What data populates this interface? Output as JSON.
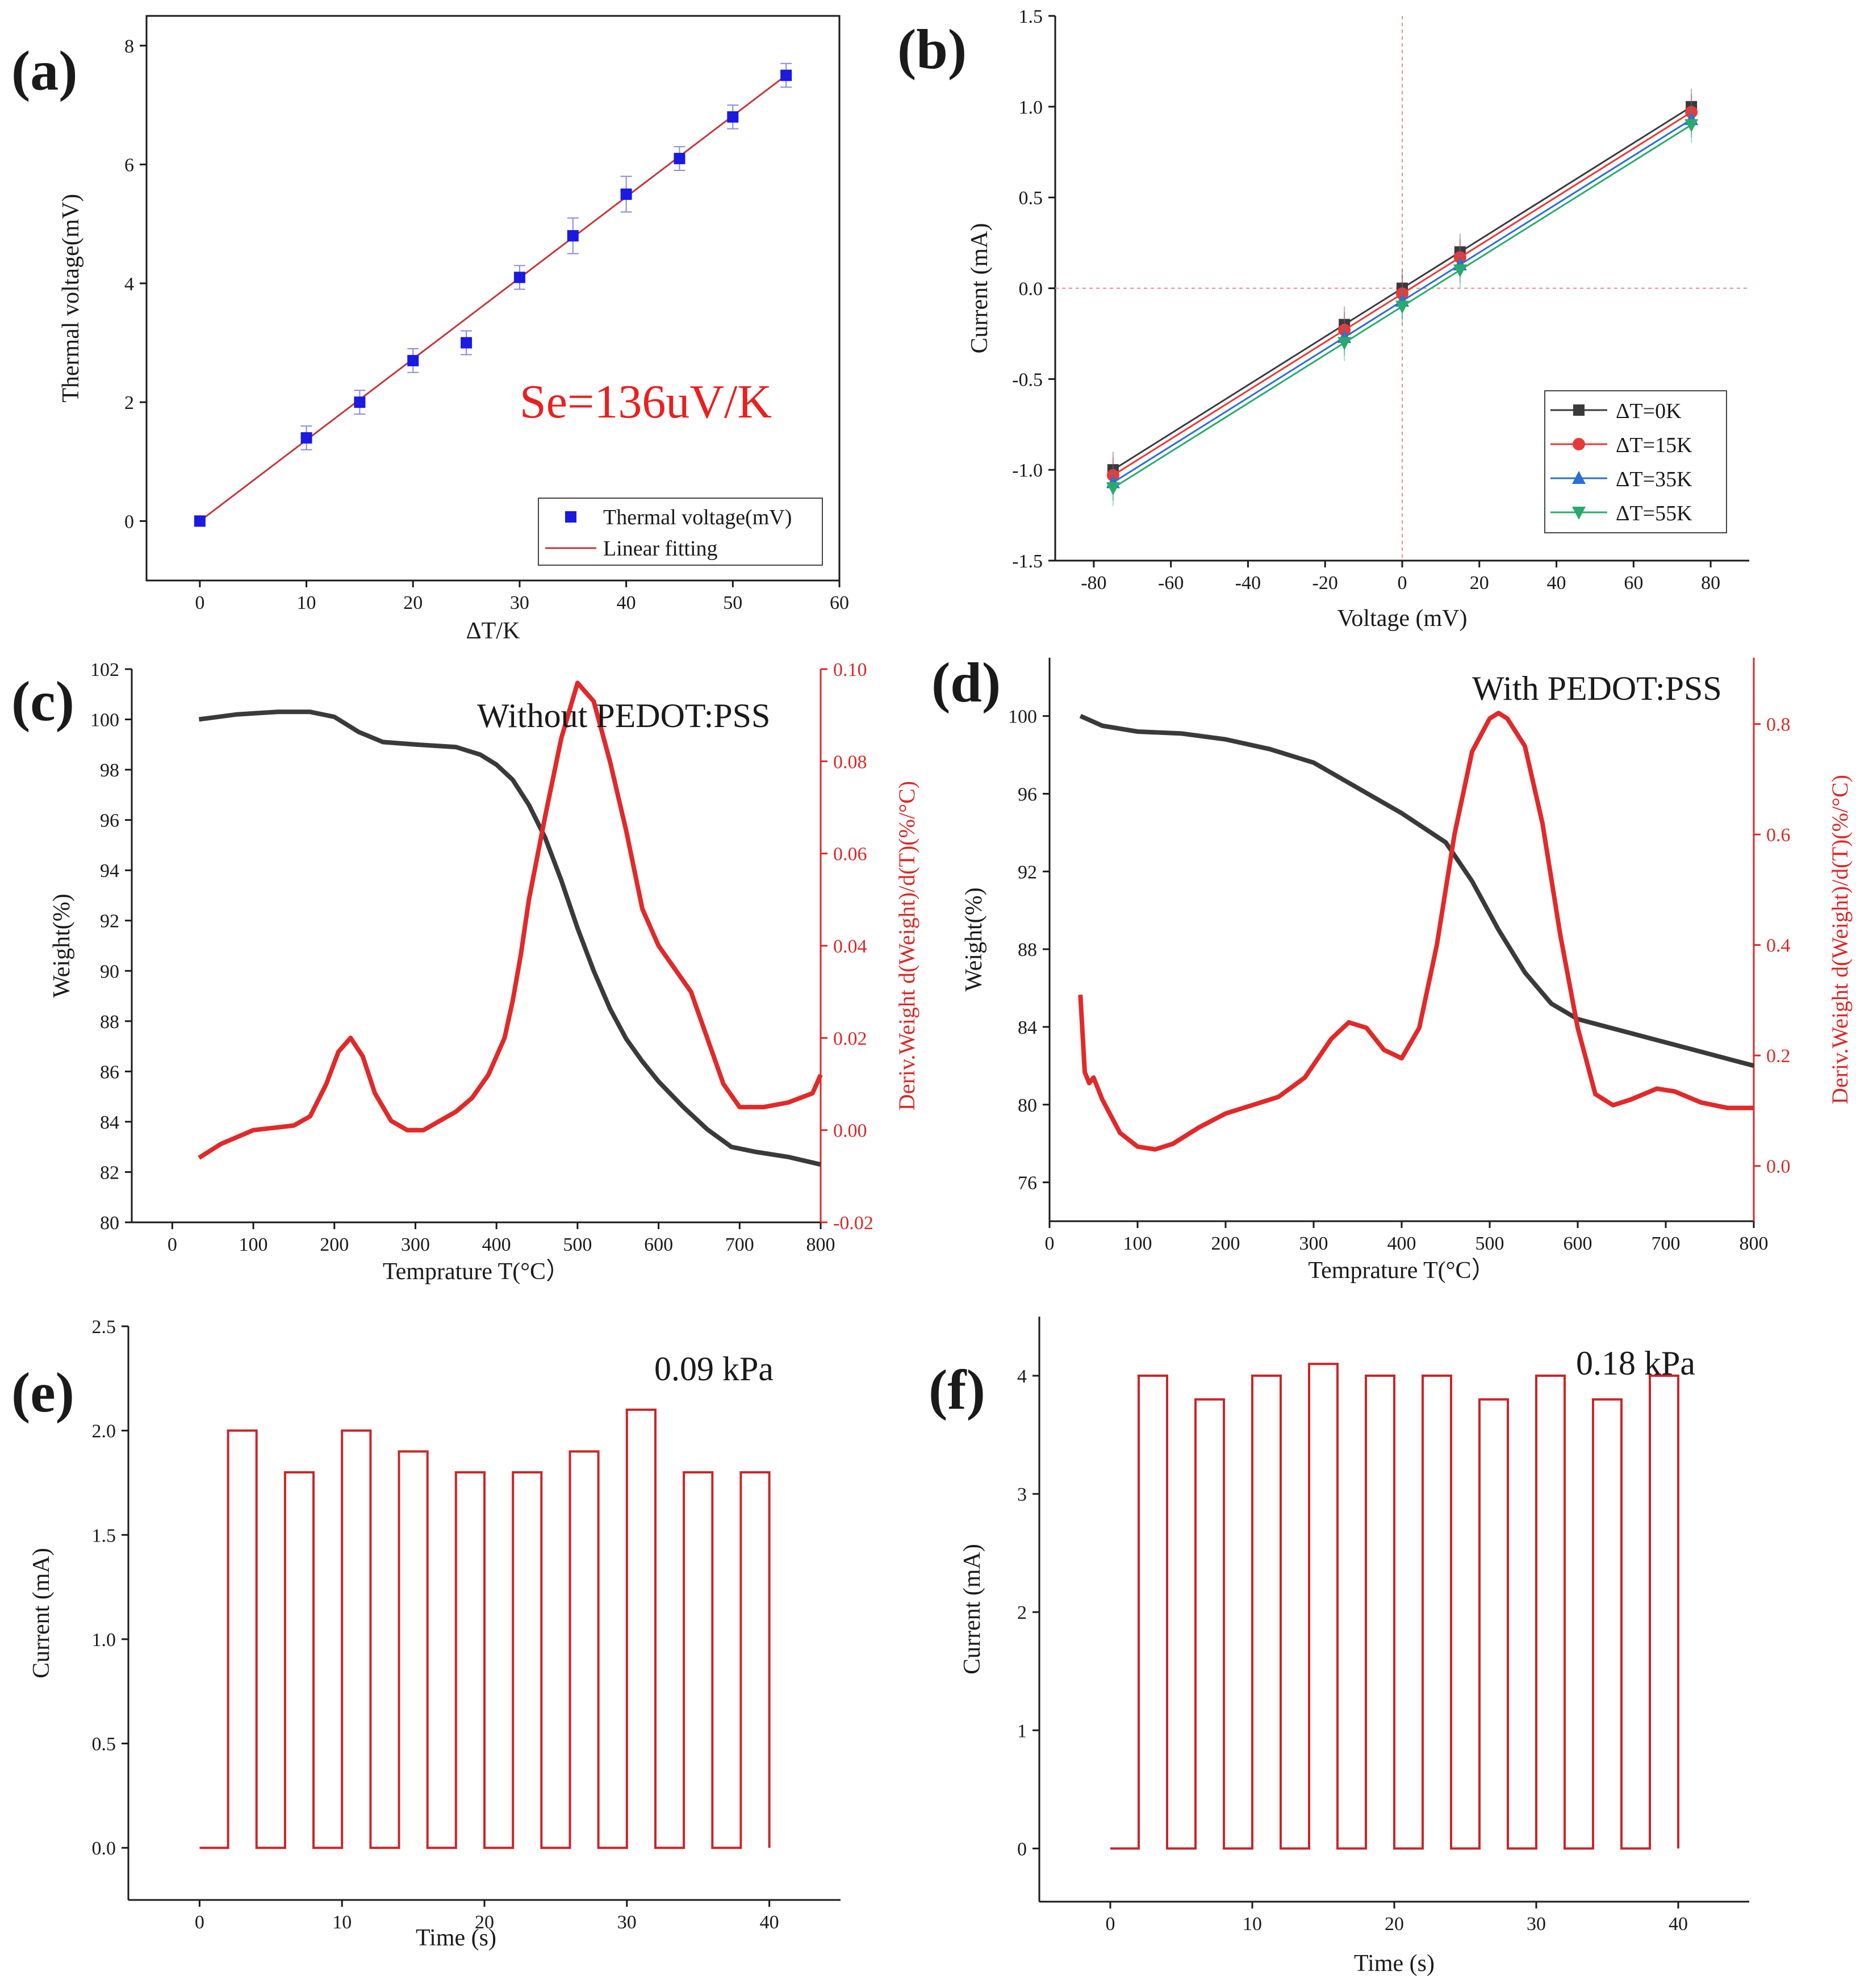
{
  "colors": {
    "text": "#1a1a1a",
    "red": "#d82a2a",
    "annotation_red": "#e8201f",
    "marker_blue": "#1a1ae0",
    "fit_line": "#c0393b",
    "tga_black": "#3a3a3a",
    "tga_red": "#e02a2a",
    "pulse_red": "#c8262a",
    "guide_pink": "#e58c8c"
  },
  "chart_data": [
    {
      "panel": "a",
      "panel_label": "(a)",
      "type": "scatter",
      "xlabel": "ΔT/K",
      "ylabel": "Thermal voltage(mV)",
      "xlim": [
        -5,
        60
      ],
      "ylim": [
        -1,
        8.5
      ],
      "xticks": [
        0,
        10,
        20,
        30,
        40,
        50,
        60
      ],
      "yticks": [
        0,
        2,
        4,
        6,
        8
      ],
      "annotation": "Se=136uV/K",
      "series": [
        {
          "name": "Thermal voltage(mV)",
          "x": [
            0,
            10,
            15,
            20,
            25,
            30,
            35,
            40,
            45,
            50,
            55
          ],
          "y": [
            0,
            1.4,
            2.0,
            2.7,
            3.0,
            4.1,
            4.8,
            5.5,
            6.1,
            6.8,
            7.5
          ],
          "err": [
            0,
            0.2,
            0.2,
            0.2,
            0.2,
            0.2,
            0.3,
            0.3,
            0.2,
            0.2,
            0.2
          ]
        }
      ],
      "fit": {
        "name": "Linear fitting",
        "x": [
          0,
          55
        ],
        "y": [
          0,
          7.5
        ]
      },
      "legend": [
        "Thermal voltage(mV)",
        "Linear fitting"
      ],
      "legend_position": "bottom-right"
    },
    {
      "panel": "b",
      "panel_label": "(b)",
      "type": "line",
      "xlabel": "Voltage (mV)",
      "ylabel": "Current (mA)",
      "xlim": [
        -90,
        90
      ],
      "ylim": [
        -1.5,
        1.5
      ],
      "xticks": [
        -80,
        -60,
        -40,
        -20,
        0,
        20,
        40,
        60,
        80
      ],
      "yticks": [
        -1.5,
        -1.0,
        -0.5,
        0.0,
        0.5,
        1.0,
        1.5
      ],
      "ytick_labels": [
        "-1.5",
        "-1.0",
        "-0.5",
        "0.0",
        "0.5",
        "1.0",
        "1.5"
      ],
      "x": [
        -75,
        -15,
        0,
        15,
        75
      ],
      "series": [
        {
          "name": "ΔT=0K",
          "color": "#3a3a3a",
          "marker": "square",
          "values": [
            -1.0,
            -0.2,
            0.0,
            0.2,
            1.0
          ]
        },
        {
          "name": "ΔT=15K",
          "color": "#e83a3a",
          "marker": "circle",
          "values": [
            -1.03,
            -0.23,
            -0.03,
            0.17,
            0.97
          ]
        },
        {
          "name": "ΔT=35K",
          "color": "#2a6fd8",
          "marker": "triangle-up",
          "values": [
            -1.07,
            -0.27,
            -0.07,
            0.13,
            0.93
          ]
        },
        {
          "name": "ΔT=55K",
          "color": "#2aaa6a",
          "marker": "triangle-down",
          "values": [
            -1.1,
            -0.3,
            -0.1,
            0.1,
            0.9
          ]
        }
      ],
      "legend_position": "bottom-right"
    },
    {
      "panel": "c",
      "panel_label": "(c)",
      "type": "line",
      "title": "Without PEDOT:PSS",
      "xlabel": "Temprature T(°C）",
      "ylabel": "Weight(%)",
      "ylabel_right": "Deriv.Weight d(Weight)/d(T)(%/°C)",
      "xlim": [
        -50,
        800
      ],
      "ylim": [
        80,
        102
      ],
      "ylim_right": [
        -0.02,
        0.1
      ],
      "xticks": [
        0,
        100,
        200,
        300,
        400,
        500,
        600,
        700,
        800
      ],
      "yticks": [
        80,
        82,
        84,
        86,
        88,
        90,
        92,
        94,
        96,
        98,
        100,
        102
      ],
      "yticks_right": [
        -0.02,
        0.0,
        0.02,
        0.04,
        0.06,
        0.08,
        0.1
      ],
      "ytick_labels_right": [
        "-0.02",
        "0.00",
        "0.02",
        "0.04",
        "0.06",
        "0.08",
        "0.10"
      ],
      "weight": {
        "x": [
          33,
          80,
          130,
          170,
          200,
          230,
          260,
          300,
          350,
          380,
          400,
          420,
          440,
          460,
          480,
          500,
          520,
          540,
          560,
          580,
          600,
          630,
          660,
          690,
          720,
          760,
          800
        ],
        "y": [
          100.0,
          100.2,
          100.3,
          100.3,
          100.1,
          99.5,
          99.1,
          99.0,
          98.9,
          98.6,
          98.2,
          97.6,
          96.6,
          95.3,
          93.6,
          91.7,
          90.0,
          88.5,
          87.3,
          86.4,
          85.6,
          84.6,
          83.7,
          83.0,
          82.8,
          82.6,
          82.3
        ]
      },
      "deriv": {
        "x": [
          33,
          60,
          100,
          150,
          170,
          190,
          205,
          220,
          235,
          250,
          270,
          290,
          310,
          330,
          350,
          370,
          390,
          410,
          420,
          430,
          440,
          460,
          480,
          500,
          520,
          540,
          560,
          580,
          600,
          620,
          640,
          660,
          680,
          700,
          730,
          760,
          790,
          800
        ],
        "y": [
          -0.006,
          -0.003,
          0.0,
          0.001,
          0.003,
          0.01,
          0.017,
          0.02,
          0.016,
          0.008,
          0.002,
          0.0,
          0.0,
          0.002,
          0.004,
          0.007,
          0.012,
          0.02,
          0.028,
          0.038,
          0.05,
          0.068,
          0.085,
          0.097,
          0.093,
          0.08,
          0.065,
          0.048,
          0.04,
          0.035,
          0.03,
          0.02,
          0.01,
          0.005,
          0.005,
          0.006,
          0.008,
          0.012
        ]
      }
    },
    {
      "panel": "d",
      "panel_label": "(d)",
      "type": "line",
      "title": "With PEDOT:PSS",
      "xlabel": "Temprature T(°C）",
      "ylabel": "Weight(%)",
      "ylabel_right": "Deriv.Weight d(Weight)/d(T)(%/°C)",
      "xlim": [
        0,
        800
      ],
      "ylim": [
        74,
        103
      ],
      "ylim_right": [
        -0.1,
        0.92
      ],
      "xticks": [
        0,
        100,
        200,
        300,
        400,
        500,
        600,
        700,
        800
      ],
      "yticks": [
        76,
        80,
        84,
        88,
        92,
        96,
        100
      ],
      "yticks_right": [
        0.0,
        0.2,
        0.4,
        0.6,
        0.8
      ],
      "ytick_labels_right": [
        "0.0",
        "0.2",
        "0.4",
        "0.6",
        "0.8"
      ],
      "weight": {
        "x": [
          35,
          60,
          100,
          150,
          200,
          250,
          300,
          350,
          400,
          450,
          480,
          510,
          540,
          570,
          600,
          650,
          700,
          750,
          800
        ],
        "y": [
          100.0,
          99.5,
          99.2,
          99.1,
          98.8,
          98.3,
          97.6,
          96.3,
          95.0,
          93.5,
          91.5,
          89.0,
          86.8,
          85.2,
          84.4,
          83.8,
          83.2,
          82.6,
          82.0
        ]
      },
      "deriv": {
        "x": [
          35,
          40,
          45,
          50,
          60,
          80,
          100,
          120,
          140,
          170,
          200,
          230,
          260,
          290,
          320,
          340,
          360,
          380,
          400,
          420,
          440,
          460,
          480,
          500,
          510,
          520,
          540,
          560,
          580,
          600,
          620,
          640,
          660,
          690,
          710,
          740,
          770,
          800
        ],
        "y": [
          0.31,
          0.17,
          0.15,
          0.16,
          0.12,
          0.06,
          0.035,
          0.03,
          0.04,
          0.07,
          0.095,
          0.11,
          0.125,
          0.16,
          0.23,
          0.26,
          0.25,
          0.21,
          0.195,
          0.25,
          0.4,
          0.6,
          0.75,
          0.81,
          0.82,
          0.81,
          0.76,
          0.62,
          0.42,
          0.25,
          0.13,
          0.11,
          0.12,
          0.14,
          0.135,
          0.115,
          0.105,
          0.105
        ]
      }
    },
    {
      "panel": "e",
      "panel_label": "(e)",
      "type": "line",
      "title": "0.09 kPa",
      "xlabel": "Time (s)",
      "ylabel": "Current (mA)",
      "xlim": [
        -5,
        45
      ],
      "ylim": [
        -0.25,
        2.5
      ],
      "xticks": [
        0,
        10,
        20,
        30,
        40
      ],
      "yticks": [
        0.0,
        0.5,
        1.0,
        1.5,
        2.0,
        2.5
      ],
      "ytick_labels": [
        "0.0",
        "0.5",
        "1.0",
        "1.5",
        "2.0",
        "2.5"
      ],
      "pulse_starts": [
        2,
        6,
        10,
        14,
        18,
        22,
        26,
        30,
        34,
        38
      ],
      "pulse_width": 2,
      "values": [
        2.0,
        1.8,
        2.0,
        1.9,
        1.8,
        1.8,
        1.9,
        2.1,
        1.8,
        1.8
      ],
      "x_end": 40
    },
    {
      "panel": "f",
      "panel_label": "(f)",
      "type": "line",
      "title": "0.18 kPa",
      "xlabel": "Time (s)",
      "ylabel": "Current (mA)",
      "xlim": [
        -5,
        45
      ],
      "ylim": [
        -0.45,
        4.5
      ],
      "xticks": [
        0,
        10,
        20,
        30,
        40
      ],
      "yticks": [
        0,
        1,
        2,
        3,
        4
      ],
      "pulse_starts": [
        2,
        6,
        10,
        14,
        18,
        22,
        26,
        30,
        34,
        38
      ],
      "pulse_width": 2,
      "values": [
        4.0,
        3.8,
        4.0,
        4.1,
        4.0,
        4.0,
        3.8,
        4.0,
        3.8,
        4.0
      ],
      "x_end": 40
    }
  ]
}
